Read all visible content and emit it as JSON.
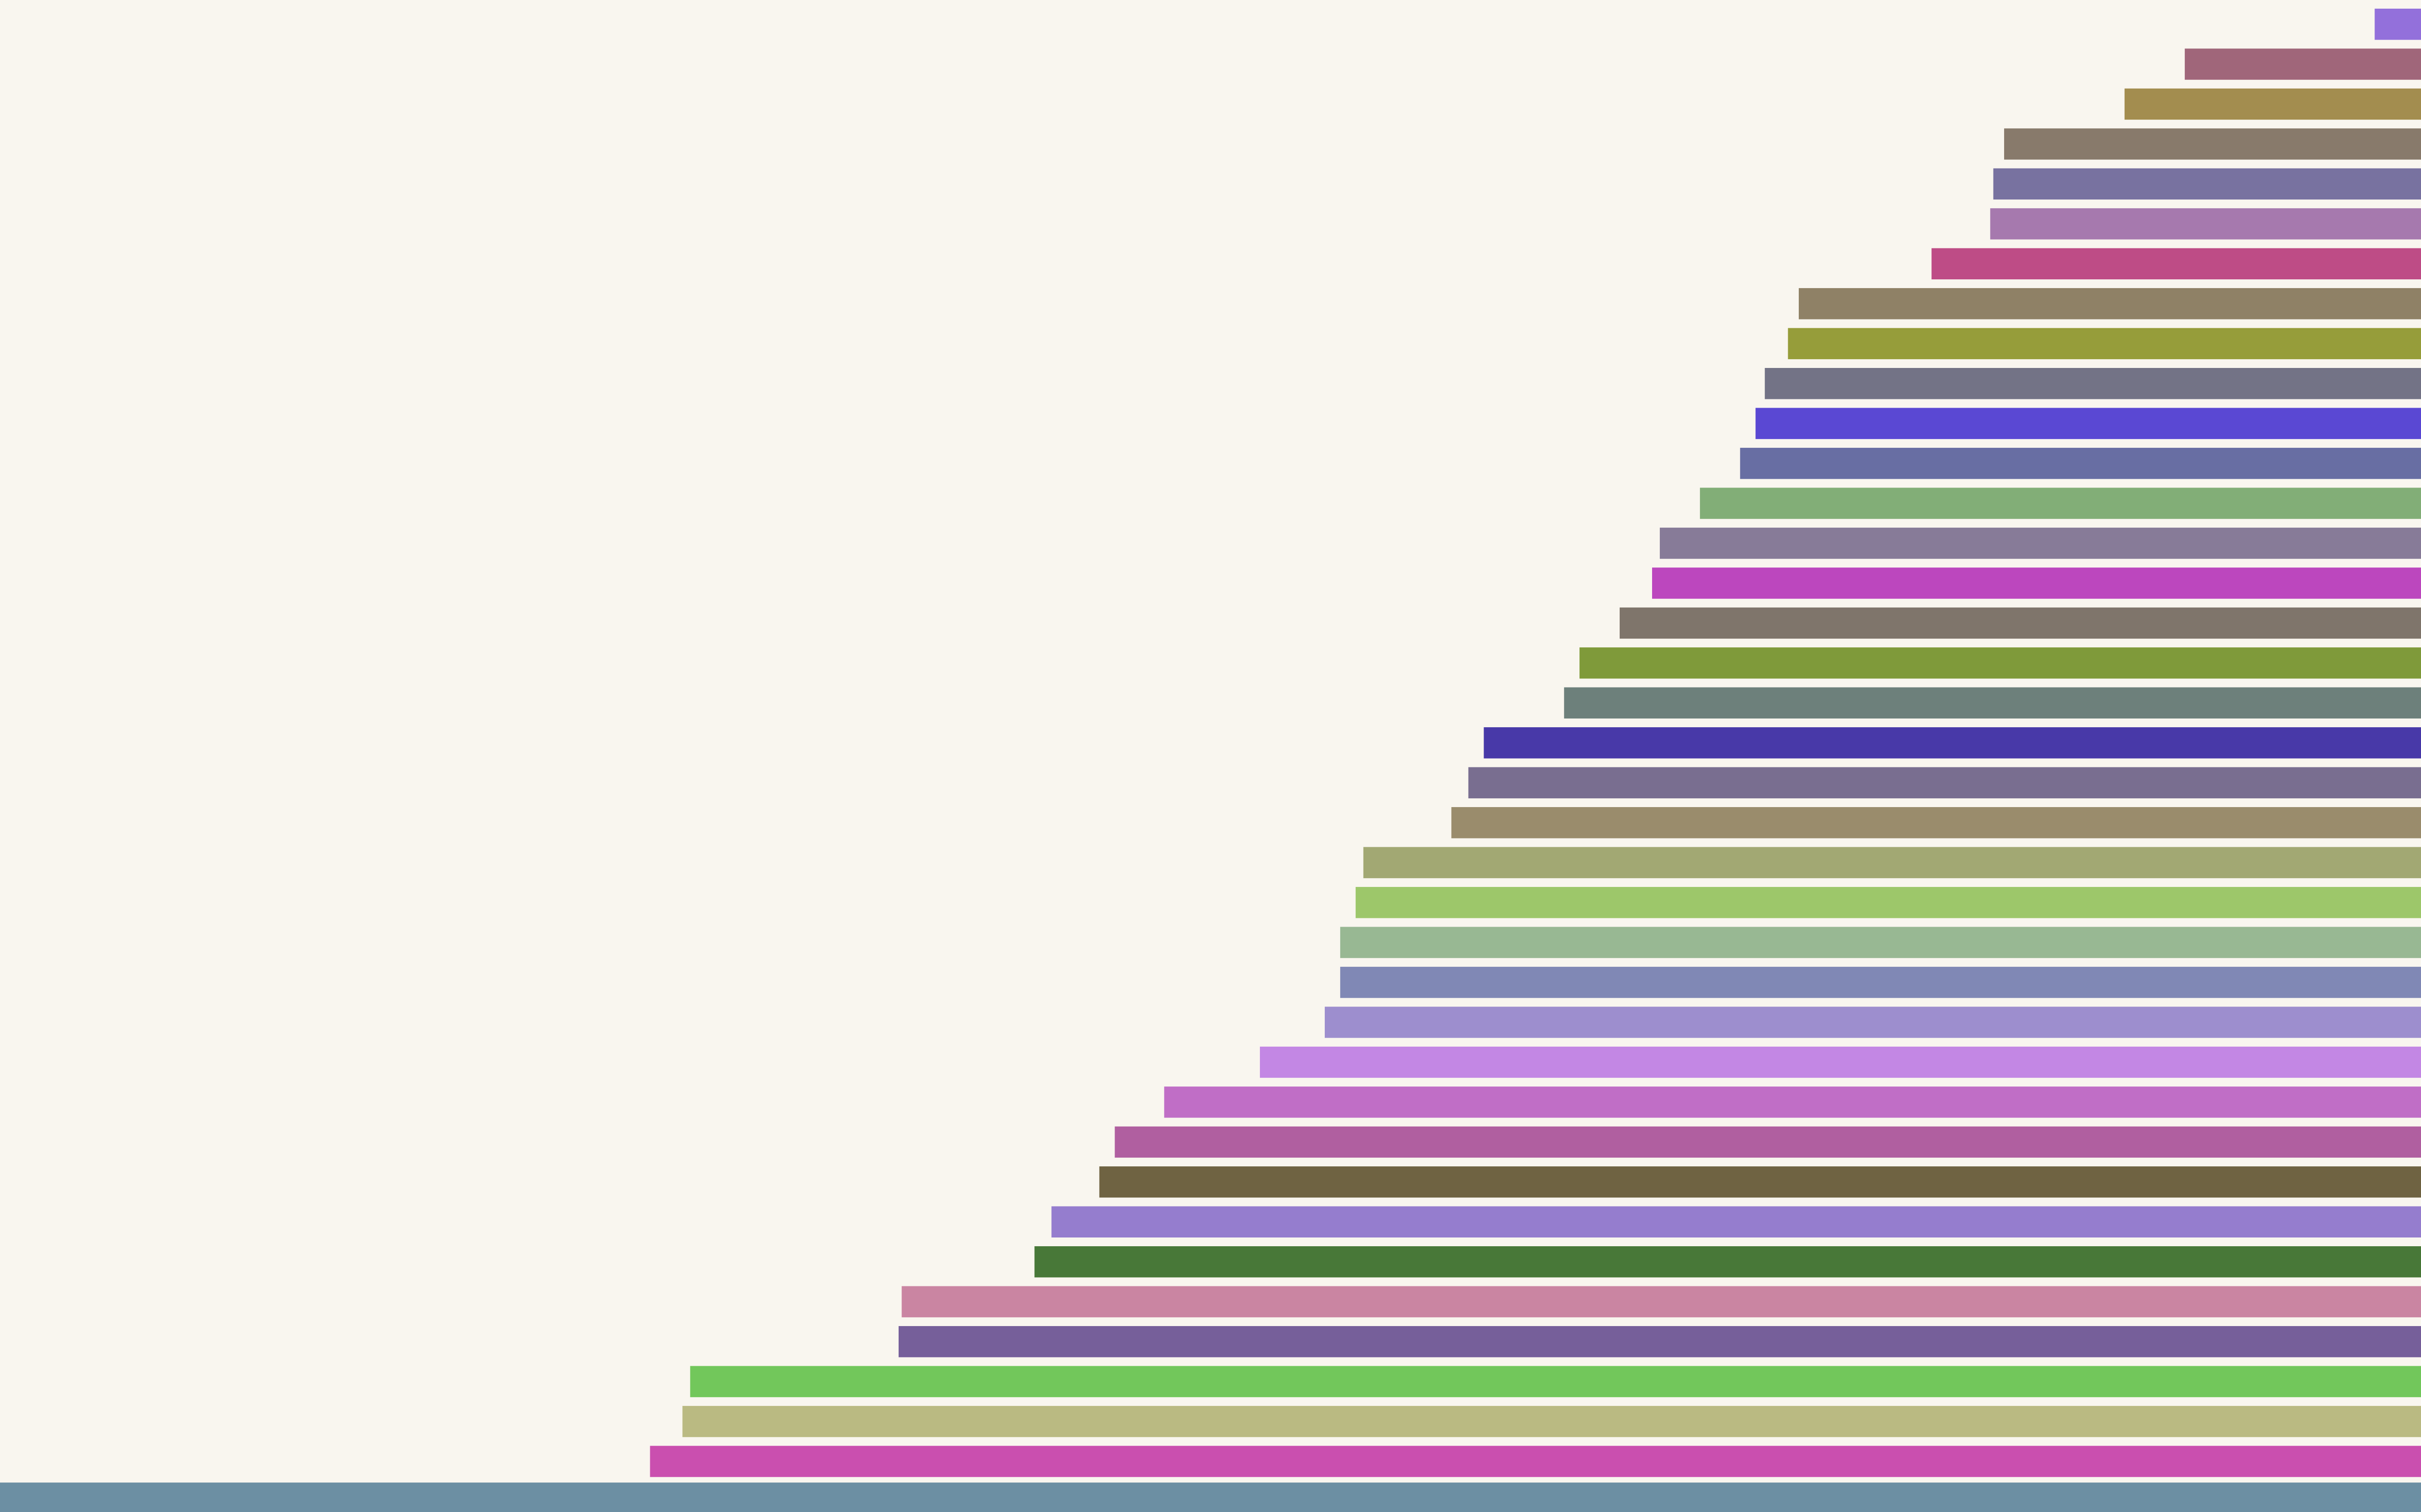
{
  "chart_data": {
    "type": "bar",
    "orientation": "horizontal",
    "alignment": "right",
    "background": "#f9f6ef",
    "grid": false,
    "axes_visible": false,
    "legend": "none",
    "xlim": [
      0,
      1568
    ],
    "values": [
      30,
      153,
      192,
      270,
      277,
      279,
      317,
      403,
      410,
      425,
      431,
      441,
      467,
      493,
      498,
      519,
      545,
      555,
      607,
      617,
      628,
      685,
      690,
      700,
      700,
      710,
      752,
      814,
      846,
      856,
      887,
      898,
      984,
      986,
      1121,
      1126,
      1147,
      1568
    ],
    "colors": [
      "#9370DB",
      "#A0667A",
      "#A38D4F",
      "#887A6B",
      "#7872A0",
      "#A679AE",
      "#BE4C86",
      "#8F8166",
      "#969D3A",
      "#737386",
      "#5A48D3",
      "#686EA3",
      "#82AE77",
      "#877B98",
      "#BC47BE",
      "#7F756B",
      "#7F9A3A",
      "#6D807B",
      "#4839A8",
      "#796E90",
      "#9A8C6C",
      "#A2A873",
      "#9DC76A",
      "#98B893",
      "#8088B5",
      "#9D8ECE",
      "#C387E4",
      "#C06EC6",
      "#B05FA0",
      "#6F6342",
      "#957DCE",
      "#487838",
      "#CA85A2",
      "#765F9A",
      "#72C75B",
      "#BABA82",
      "#CA4FAF",
      "#6C8FA3"
    ]
  }
}
